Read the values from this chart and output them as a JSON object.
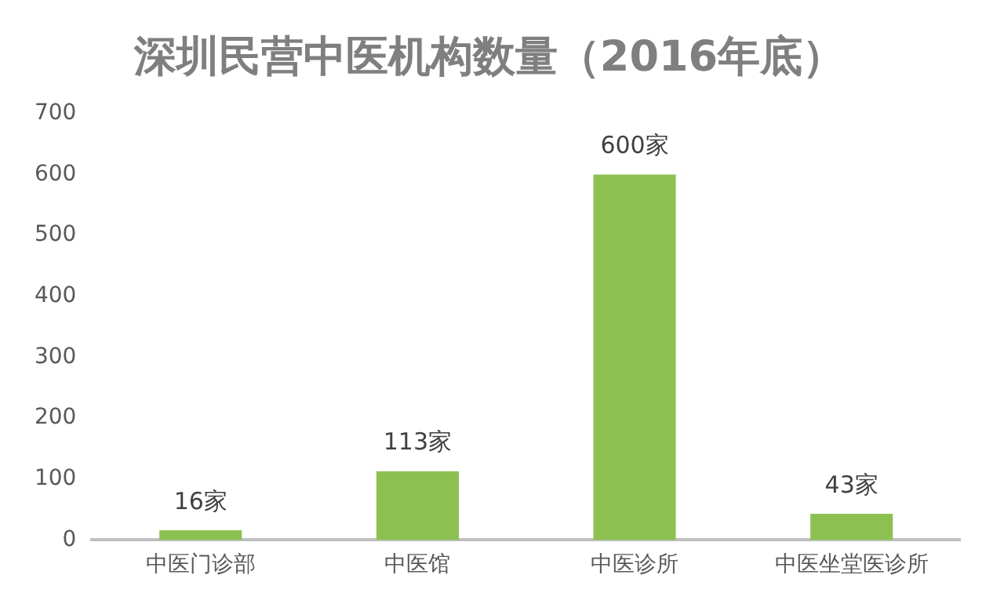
{
  "chart_data": {
    "type": "bar",
    "title": "深圳民营中医机构数量（2016年底）",
    "categories": [
      "中医门诊部",
      "中医馆",
      "中医诊所",
      "中医坐堂医诊所"
    ],
    "values": [
      16,
      113,
      600,
      43
    ],
    "color": "#8cc152",
    "value_labels": [
      "16家",
      "113家",
      "600家",
      "43家"
    ],
    "ylim": [
      0,
      700
    ],
    "yticks": [
      0,
      100,
      200,
      300,
      400,
      500,
      600,
      700
    ],
    "grid": false,
    "legend": false
  }
}
